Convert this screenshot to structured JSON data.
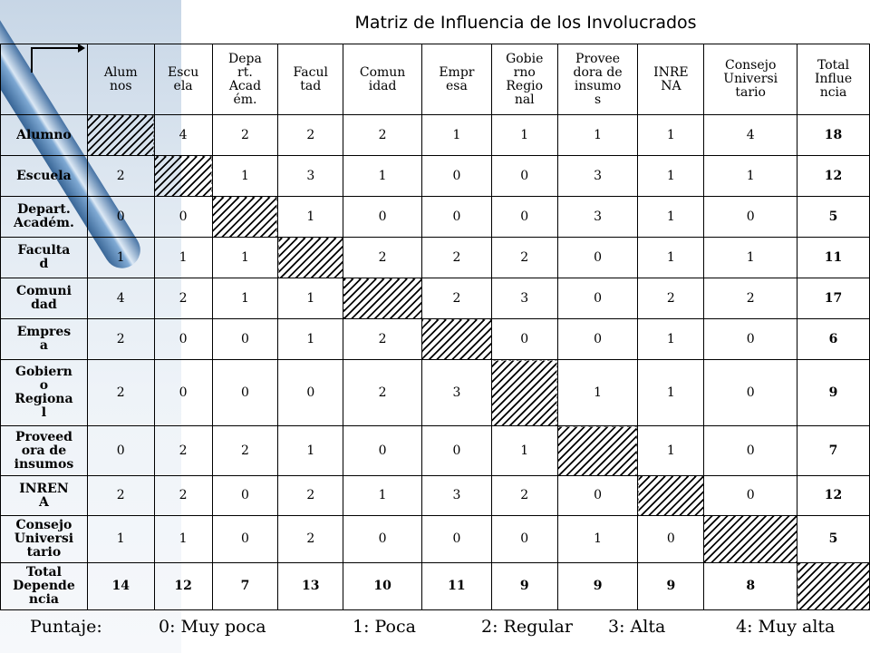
{
  "title": "Matriz de Influencia de los Involucrados",
  "columns": [
    "Alum\nnos",
    "Escu\nela",
    "Depa\nrt.\nAcad\ném.",
    "Facul\ntad",
    "Comun\nidad",
    "Empr\nesa",
    "Gobie\nrno\nRegio\nnal",
    "Provee\ndora de\ninsumo\ns",
    "INRE\nNA",
    "Consejo\nUniversi\ntario",
    "Total\nInflue\nncia"
  ],
  "rows": [
    {
      "label": "Alumno",
      "cells": [
        "",
        "4",
        "2",
        "2",
        "2",
        "1",
        "1",
        "1",
        "1",
        "4"
      ],
      "total": "18"
    },
    {
      "label": "Escuela",
      "cells": [
        "2",
        "",
        "1",
        "3",
        "1",
        "0",
        "0",
        "3",
        "1",
        "1"
      ],
      "total": "12"
    },
    {
      "label": "Depart.\nAcadém.",
      "cells": [
        "0",
        "0",
        "",
        "1",
        "0",
        "0",
        "0",
        "3",
        "1",
        "0"
      ],
      "total": "5"
    },
    {
      "label": "Faculta\nd",
      "cells": [
        "1",
        "1",
        "1",
        "",
        "2",
        "2",
        "2",
        "0",
        "1",
        "1"
      ],
      "total": "11"
    },
    {
      "label": "Comuni\ndad",
      "cells": [
        "4",
        "2",
        "1",
        "1",
        "",
        "2",
        "3",
        "0",
        "2",
        "2"
      ],
      "total": "17"
    },
    {
      "label": "Empres\na",
      "cells": [
        "2",
        "0",
        "0",
        "1",
        "2",
        "",
        "0",
        "0",
        "1",
        "0"
      ],
      "total": "6"
    },
    {
      "label": "Gobiern\no\nRegiona\nl",
      "cells": [
        "2",
        "0",
        "0",
        "0",
        "2",
        "3",
        "",
        "1",
        "1",
        "0"
      ],
      "total": "9"
    },
    {
      "label": "Proveed\nora de\ninsumos",
      "cells": [
        "0",
        "2",
        "2",
        "1",
        "0",
        "0",
        "1",
        "",
        "1",
        "0"
      ],
      "total": "7"
    },
    {
      "label": "INREN\nA",
      "cells": [
        "2",
        "2",
        "0",
        "2",
        "1",
        "3",
        "2",
        "0",
        "",
        "0"
      ],
      "total": "12"
    },
    {
      "label": "Consejo\nUniversi\ntario",
      "cells": [
        "1",
        "1",
        "0",
        "2",
        "0",
        "0",
        "0",
        "1",
        "0",
        ""
      ],
      "total": "5"
    }
  ],
  "dependence_row": {
    "label": "Total\nDepende\nncia",
    "values": [
      "14",
      "12",
      "7",
      "13",
      "10",
      "11",
      "9",
      "9",
      "9",
      "8"
    ]
  },
  "legend": {
    "label": "Puntaje:",
    "items": [
      "0: Muy poca",
      "1: Poca",
      "2: Regular",
      "3: Alta",
      "4: Muy alta"
    ]
  }
}
